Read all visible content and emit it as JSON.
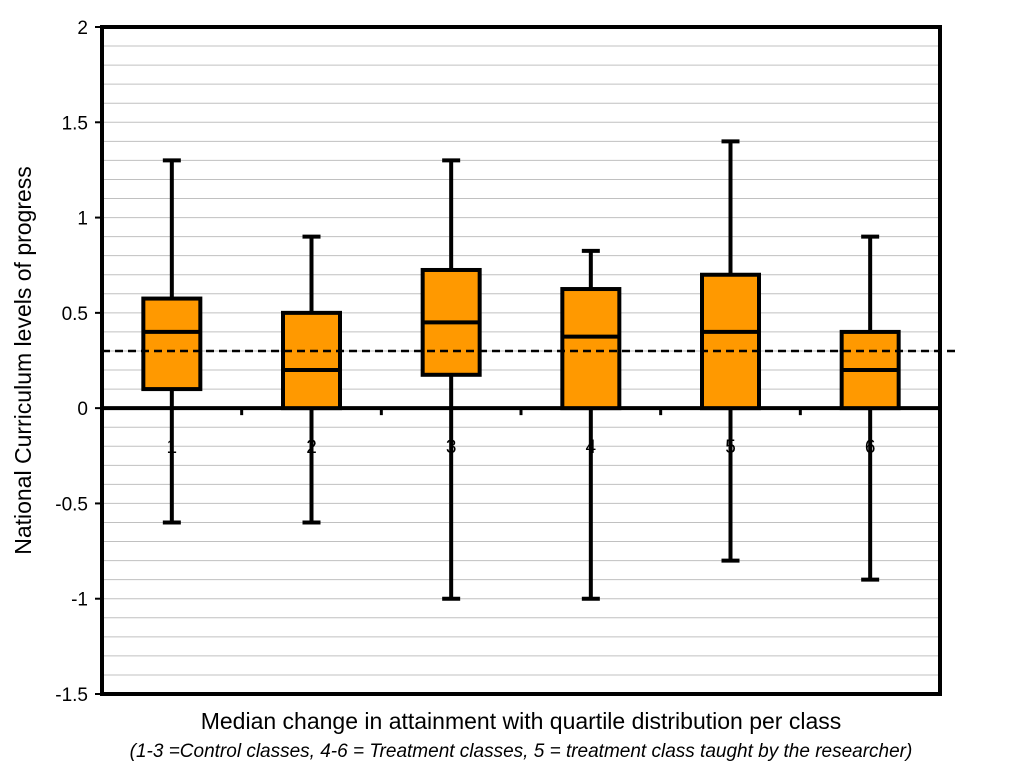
{
  "chart_data": {
    "type": "boxplot",
    "categories": [
      "1",
      "2",
      "3",
      "4",
      "5",
      "6"
    ],
    "boxes": [
      {
        "category": "1",
        "min": -0.6,
        "q1": 0.1,
        "median": 0.4,
        "q3": 0.575,
        "max": 1.3
      },
      {
        "category": "2",
        "min": -0.6,
        "q1": 0.0,
        "median": 0.2,
        "q3": 0.5,
        "max": 0.9
      },
      {
        "category": "3",
        "min": -1.0,
        "q1": 0.175,
        "median": 0.45,
        "q3": 0.725,
        "max": 1.3
      },
      {
        "category": "4",
        "min": -1.0,
        "q1": 0.0,
        "median": 0.375,
        "q3": 0.625,
        "max": 0.825
      },
      {
        "category": "5",
        "min": -0.8,
        "q1": 0.0,
        "median": 0.4,
        "q3": 0.7,
        "max": 1.4
      },
      {
        "category": "6",
        "min": -0.9,
        "q1": 0.0,
        "median": 0.2,
        "q3": 0.4,
        "max": 0.9
      }
    ],
    "reference_line": {
      "y": 0.3,
      "style": "dashed"
    },
    "ylim": [
      -1.5,
      2
    ],
    "yticks": [
      "2",
      "1.5",
      "1",
      "0.5",
      "0",
      "-0.5",
      "-1",
      "-1.5"
    ],
    "ytick_values": [
      2,
      1.5,
      1,
      0.5,
      0,
      -0.5,
      -1,
      -1.5
    ],
    "minor_grid_step": 0.1,
    "ylabel": "National Curriculum levels of progress",
    "xlabel": "Median change in attainment with quartile distribution per class",
    "subtitle": "(1-3 =Control classes, 4-6 = Treatment classes, 5 = treatment class taught by the researcher)",
    "grid": true,
    "box_fill": "#ff9900",
    "box_stroke": "#000000",
    "grid_color": "#c0c0c0"
  }
}
